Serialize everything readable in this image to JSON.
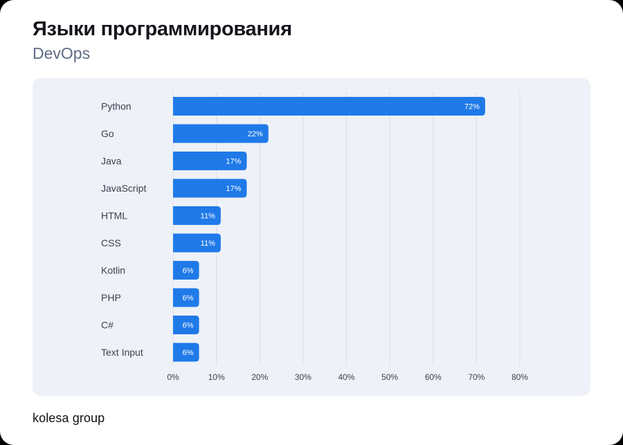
{
  "header": {
    "title": "Языки программирования",
    "subtitle": "DevOps"
  },
  "footer": {
    "brand": "kolesa group"
  },
  "colors": {
    "bar": "#1f7ae8",
    "grid": "#d9dee8",
    "label": "#3a4150",
    "value": "#ffffff"
  },
  "chart_data": {
    "type": "bar",
    "orientation": "horizontal",
    "title": "Языки программирования",
    "subtitle": "DevOps",
    "categories": [
      "Python",
      "Go",
      "Java",
      "JavaScript",
      "HTML",
      "CSS",
      "Kotlin",
      "PHP",
      "C#",
      "Text Input"
    ],
    "values": [
      72,
      22,
      17,
      17,
      11,
      11,
      6,
      6,
      6,
      6
    ],
    "value_labels": [
      "72%",
      "22%",
      "17%",
      "17%",
      "11%",
      "11%",
      "6%",
      "6%",
      "6%",
      "6%"
    ],
    "xlim": [
      0,
      80
    ],
    "ticks": [
      0,
      10,
      20,
      30,
      40,
      50,
      60,
      70,
      80
    ],
    "tick_labels": [
      "0%",
      "10%",
      "20%",
      "30%",
      "40%",
      "50%",
      "60%",
      "70%",
      "80%"
    ],
    "grid": true,
    "xlabel": "",
    "ylabel": ""
  }
}
